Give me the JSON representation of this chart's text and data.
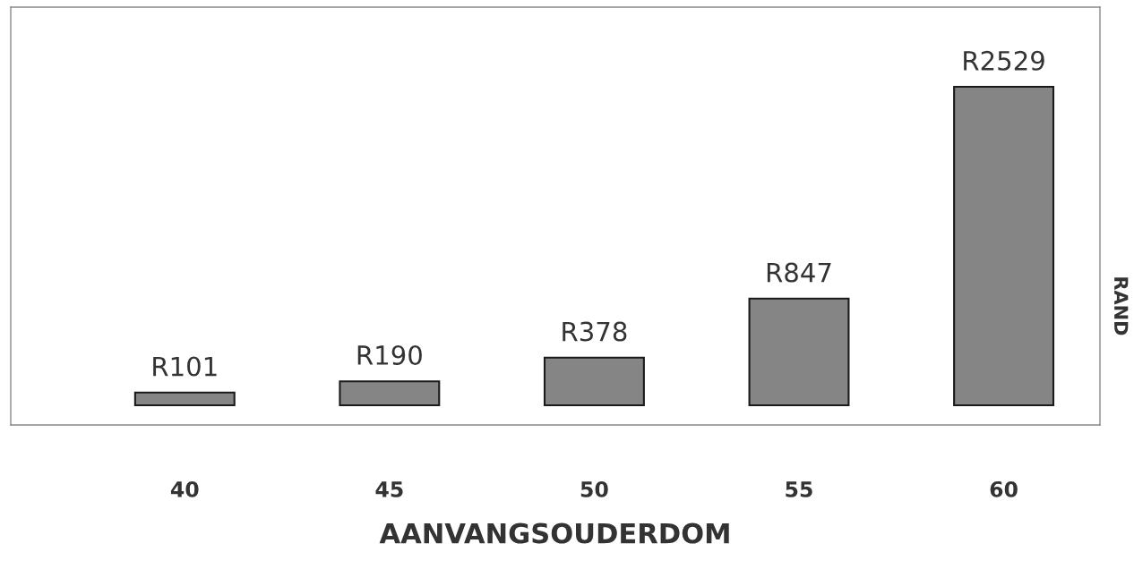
{
  "chart_data": {
    "type": "bar",
    "categories": [
      "40",
      "45",
      "50",
      "55",
      "60"
    ],
    "values": [
      101,
      190,
      378,
      847,
      2529
    ],
    "value_labels": [
      "R101",
      "R190",
      "R378",
      "R847",
      "R2529"
    ],
    "color": "#858585",
    "xlabel": "AANVANGSOUDERDOM",
    "ylabel": "RAND",
    "tick_labels": "x"
  }
}
